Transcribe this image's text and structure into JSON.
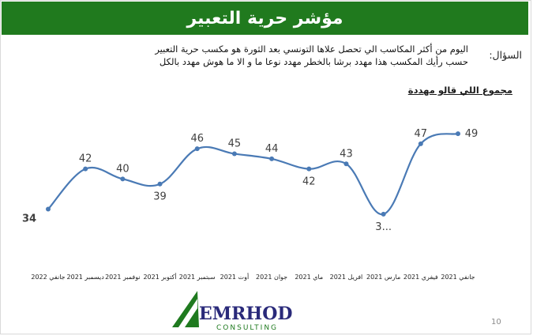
{
  "header": {
    "title": "مؤشر حرية التعبير"
  },
  "question": {
    "label": "السؤال:",
    "line1": "اليوم من أكثر المكاسب الي تحصل علاها التونسي بعد الثورة هو مكسب حرية التعبير",
    "line2": "حسب رأيك المكسب هذا مهدد برشا بالخطر مهدد نوعا ما و الا ما هوش مهدد بالكل"
  },
  "colors": {
    "header_bg": "#207a1e",
    "line": "#4a7ab5",
    "logo_green": "#1f7a1f",
    "logo_text": "#2a2a7a"
  },
  "chart_data": {
    "type": "line",
    "title": "مجموع اللي قالو مهددة",
    "categories": [
      "جانفي 2021",
      "فيفري 2021",
      "مارس 2021",
      "افريل 2021",
      "ماي 2021",
      "جوان 2021",
      "أوت 2021",
      "سبتمبر 2021",
      "أكتوبر 2021",
      "نوفمبر 2021",
      "ديسمبر 2021",
      "جانفي 2022"
    ],
    "series": [
      {
        "values": [
          49,
          47,
          33,
          43,
          42,
          44,
          45,
          46,
          39,
          40,
          42,
          34
        ]
      }
    ],
    "data_labels": [
      "49",
      "47",
      "3...",
      "43",
      "42",
      "44",
      "45",
      "46",
      "39",
      "40",
      "42",
      "34"
    ],
    "x_direction": "right-to-left",
    "ylim": [
      30,
      52
    ],
    "grid": false,
    "legend": "none"
  },
  "logo": {
    "name": "EMRHOD",
    "sub": "CONSULTING"
  },
  "page_number": "10"
}
